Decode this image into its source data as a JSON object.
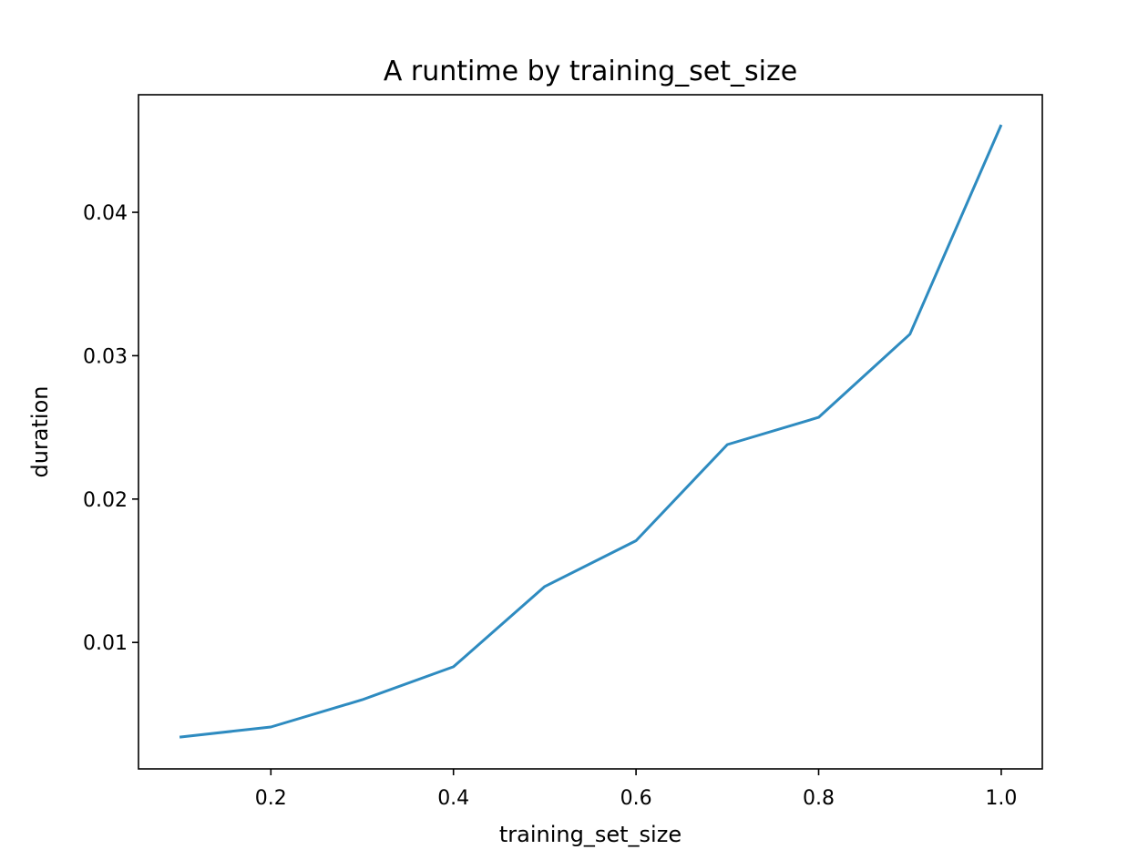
{
  "chart_data": {
    "type": "line",
    "title": "A runtime by training_set_size",
    "xlabel": "training_set_size",
    "ylabel": "duration",
    "xlim": [
      0.055,
      1.045
    ],
    "ylim": [
      0.00118,
      0.0482
    ],
    "xticks": [
      0.2,
      0.4,
      0.6,
      0.8,
      1.0
    ],
    "xtick_labels": [
      "0.2",
      "0.4",
      "0.6",
      "0.8",
      "1.0"
    ],
    "yticks": [
      0.01,
      0.02,
      0.03,
      0.04
    ],
    "ytick_labels": [
      "0.01",
      "0.02",
      "0.03",
      "0.04"
    ],
    "grid": false,
    "series": [
      {
        "name": "duration",
        "color": "#2e8bc0",
        "x": [
          0.1,
          0.2,
          0.3,
          0.4,
          0.5,
          0.6,
          0.7,
          0.8,
          0.9,
          1.0
        ],
        "y": [
          0.0034,
          0.0041,
          0.006,
          0.0083,
          0.0139,
          0.0171,
          0.0238,
          0.0257,
          0.0315,
          0.0461
        ]
      }
    ]
  }
}
